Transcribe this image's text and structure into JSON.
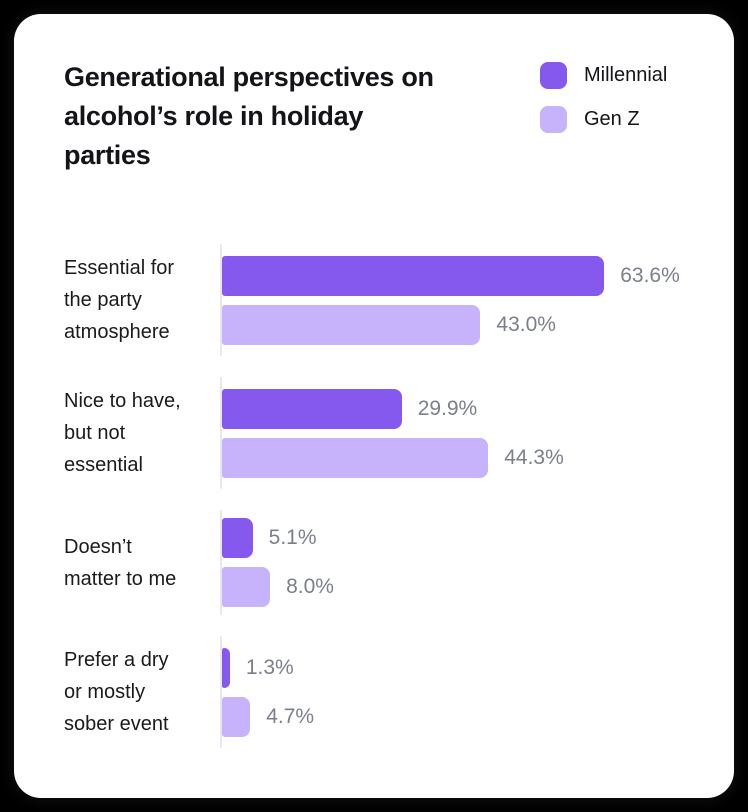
{
  "colors": {
    "page_background": "#000000",
    "card_background": "#FFFFFF",
    "millennial": "#8659EE",
    "gen_z": "#C6B3FB",
    "value_label": "#7B7F8C",
    "text": "#141418",
    "axis_line": "#E8E6EF"
  },
  "title": {
    "lines": [
      "Generational perspectives on",
      "alcohol’s role in holiday",
      "parties"
    ]
  },
  "legend": {
    "items": [
      {
        "label": "Millennial",
        "color": "#8659EE"
      },
      {
        "label": "Gen Z",
        "color": "#C6B3FB"
      }
    ]
  },
  "chart": {
    "groups": [
      {
        "label_lines": [
          "Essential for",
          "the party",
          "atmosphere"
        ],
        "bars": [
          {
            "series": "Millennial",
            "value": 63.6,
            "label": "63.6%"
          },
          {
            "series": "Gen Z",
            "value": 43.0,
            "label": "43.0%"
          }
        ]
      },
      {
        "label_lines": [
          "Nice to have,",
          "but not",
          "essential"
        ],
        "bars": [
          {
            "series": "Millennial",
            "value": 29.9,
            "label": "29.9%"
          },
          {
            "series": "Gen Z",
            "value": 44.3,
            "label": "44.3%"
          }
        ]
      },
      {
        "label_lines": [
          "Doesn’t",
          "matter to me"
        ],
        "bars": [
          {
            "series": "Millennial",
            "value": 5.1,
            "label": "5.1%"
          },
          {
            "series": "Gen Z",
            "value": 8.0,
            "label": "8.0%"
          }
        ]
      },
      {
        "label_lines": [
          "Prefer a dry",
          "or mostly",
          "sober event"
        ],
        "bars": [
          {
            "series": "Millennial",
            "value": 1.3,
            "label": "1.3%"
          },
          {
            "series": "Gen Z",
            "value": 4.7,
            "label": "4.7%"
          }
        ]
      }
    ]
  },
  "chart_data": {
    "type": "bar",
    "orientation": "horizontal",
    "title": "Generational perspectives on alcohol’s role in holiday parties",
    "categories": [
      "Essential for the party atmosphere",
      "Nice to have, but not essential",
      "Doesn’t matter to me",
      "Prefer a dry or mostly sober event"
    ],
    "series": [
      {
        "name": "Millennial",
        "color": "#8659EE",
        "values": [
          63.6,
          29.9,
          5.1,
          1.3
        ]
      },
      {
        "name": "Gen Z",
        "color": "#C6B3FB",
        "values": [
          43.0,
          44.3,
          8.0,
          4.7
        ]
      }
    ],
    "unit": "percent",
    "value_labels": true,
    "xlim": [
      0,
      70
    ],
    "grid": false,
    "legend_position": "top-right"
  }
}
